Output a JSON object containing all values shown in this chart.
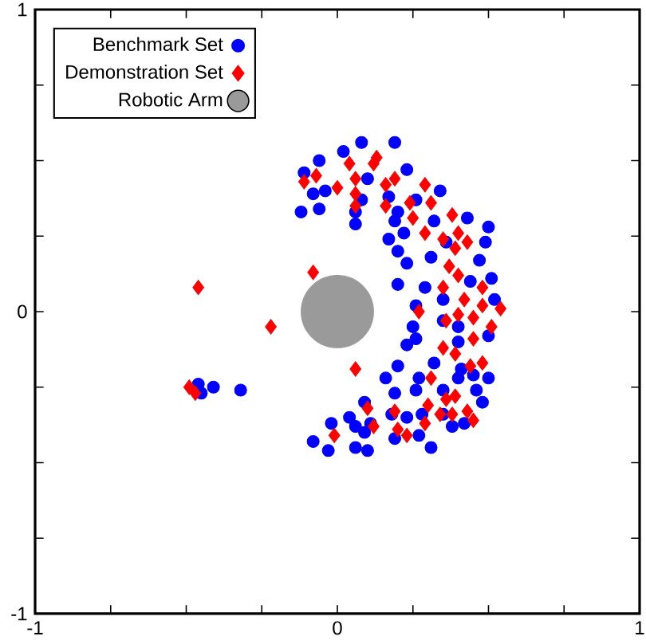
{
  "chart_data": {
    "type": "scatter",
    "xlim": [
      -1,
      1
    ],
    "ylim": [
      -1,
      1
    ],
    "xticks": [
      -1,
      {
        "value": -0.75,
        "label": null
      },
      {
        "value": -0.5,
        "label": null
      },
      {
        "value": -0.25,
        "label": null
      },
      0,
      {
        "value": 0.25,
        "label": null
      },
      {
        "value": 0.5,
        "label": null
      },
      {
        "value": 0.75,
        "label": null
      },
      1
    ],
    "yticks": [
      -1,
      {
        "value": -0.75,
        "label": null
      },
      {
        "value": -0.5,
        "label": null
      },
      {
        "value": -0.25,
        "label": null
      },
      0,
      {
        "value": 0.25,
        "label": null
      },
      {
        "value": 0.5,
        "label": null
      },
      {
        "value": 0.75,
        "label": null
      },
      1
    ],
    "grid": false,
    "legend": "top left",
    "series": [
      {
        "name": "Benchmark Set",
        "color": "#0000ff",
        "marker": "circle",
        "x": [
          -0.46,
          -0.41,
          -0.32,
          -0.45,
          0.08,
          0.19,
          -0.06,
          0.02,
          -0.11,
          -0.08,
          -0.04,
          -0.12,
          -0.06,
          0.06,
          0.06,
          0.1,
          0.08,
          0.23,
          0.17,
          0.2,
          0.26,
          0.34,
          0.17,
          0.22,
          0.19,
          0.2,
          0.23,
          0.2,
          0.31,
          0.32,
          0.43,
          0.5,
          0.49,
          0.47,
          0.36,
          0.29,
          0.35,
          0.44,
          0.51,
          0.52,
          0.26,
          0.25,
          0.23,
          0.26,
          0.35,
          0.4,
          0.4,
          0.5,
          0.32,
          0.41,
          0.45,
          0.5,
          0.2,
          0.16,
          0.19,
          0.26,
          0.27,
          0.35,
          0.4,
          0.46,
          0.48,
          0.09,
          0.04,
          -0.02,
          0.06,
          0.11,
          0.18,
          0.23,
          0.19,
          0.09,
          -0.08,
          -0.03,
          0.06,
          0.1,
          0.31,
          0.27,
          0.38,
          0.42,
          0.28,
          0.35
        ],
        "values": [
          -0.24,
          -0.25,
          -0.26,
          -0.27,
          0.56,
          0.56,
          0.5,
          0.53,
          0.46,
          0.39,
          0.4,
          0.33,
          0.34,
          0.33,
          0.29,
          0.44,
          0.37,
          0.47,
          0.38,
          0.33,
          0.37,
          0.4,
          0.24,
          0.26,
          0.3,
          0.2,
          0.16,
          0.09,
          0.18,
          0.3,
          0.31,
          0.28,
          0.23,
          0.17,
          0.23,
          0.08,
          0.04,
          0.1,
          0.11,
          0.04,
          0.02,
          -0.05,
          -0.11,
          -0.09,
          -0.03,
          -0.05,
          -0.1,
          -0.08,
          -0.17,
          -0.19,
          -0.21,
          -0.22,
          -0.18,
          -0.22,
          -0.27,
          -0.26,
          -0.22,
          -0.26,
          -0.22,
          -0.26,
          -0.3,
          -0.3,
          -0.35,
          -0.37,
          -0.38,
          -0.37,
          -0.34,
          -0.35,
          -0.42,
          -0.4,
          -0.43,
          -0.46,
          -0.45,
          -0.46,
          -0.45,
          -0.41,
          -0.38,
          -0.37,
          -0.34,
          -0.34
        ]
      },
      {
        "name": "Demonstration Set",
        "color": "#ff0000",
        "marker": "diamond",
        "x": [
          -0.49,
          -0.47,
          -0.46,
          -0.22,
          -0.08,
          0.06,
          -0.11,
          -0.07,
          0.0,
          0.04,
          0.06,
          0.13,
          0.12,
          0.06,
          0.06,
          0.16,
          0.19,
          0.16,
          0.24,
          0.29,
          0.31,
          0.25,
          0.38,
          0.29,
          0.35,
          0.4,
          0.39,
          0.43,
          0.37,
          0.4,
          0.35,
          0.48,
          0.42,
          0.48,
          0.54,
          0.27,
          0.36,
          0.4,
          0.45,
          0.51,
          0.45,
          0.35,
          0.39,
          0.48,
          0.44,
          0.31,
          0.39,
          0.36,
          0.3,
          0.34,
          0.38,
          0.43,
          0.45,
          0.1,
          0.12,
          0.19,
          0.2,
          0.23,
          0.29,
          -0.01
        ],
        "values": [
          -0.25,
          -0.27,
          0.08,
          -0.05,
          0.13,
          -0.19,
          0.43,
          0.45,
          0.41,
          0.49,
          0.44,
          0.51,
          0.49,
          0.39,
          0.35,
          0.42,
          0.44,
          0.35,
          0.36,
          0.42,
          0.36,
          0.31,
          0.32,
          0.26,
          0.24,
          0.26,
          0.21,
          0.23,
          0.15,
          0.12,
          0.08,
          0.08,
          0.04,
          0.02,
          0.01,
          0.0,
          -0.03,
          -0.01,
          -0.02,
          -0.05,
          -0.09,
          -0.12,
          -0.14,
          -0.17,
          -0.18,
          -0.22,
          -0.28,
          -0.29,
          -0.31,
          -0.34,
          -0.34,
          -0.33,
          -0.36,
          -0.32,
          -0.38,
          -0.33,
          -0.39,
          -0.41,
          -0.37,
          -0.41
        ]
      },
      {
        "name": "Robotic Arm",
        "color": "#9a9a9a",
        "marker": "circle",
        "x": [
          0
        ],
        "values": [
          0
        ]
      }
    ]
  }
}
